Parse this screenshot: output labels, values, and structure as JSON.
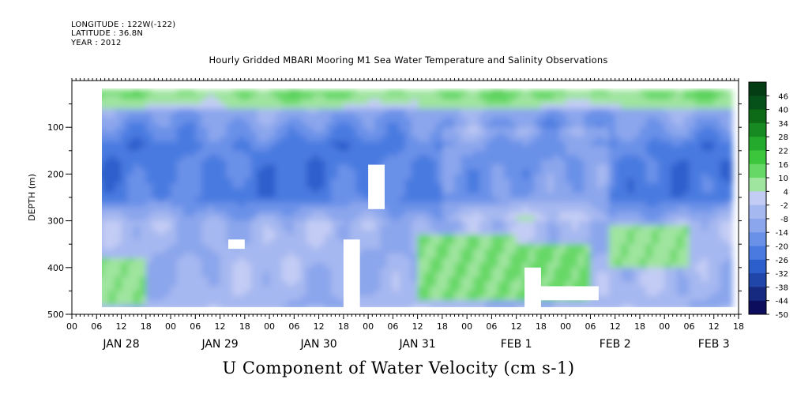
{
  "header": {
    "longitude": "LONGITUDE : 122W(-122)",
    "latitude": "LATITUDE : 36.8N",
    "year": "YEAR : 2012",
    "title": "Hourly Gridded MBARI Mooring M1 Sea Water Temperature and Salinity Observations"
  },
  "chart_data": {
    "type": "heatmap",
    "title": "Hourly Gridded MBARI Mooring M1 Sea Water Temperature and Salinity Observations",
    "xlabel": "U Component of Water Velocity (cm s-1)",
    "ylabel": "DEPTH (m)",
    "x_unit": "hours",
    "x_range_hours": [
      0,
      162
    ],
    "x_hour_ticks": [
      "00",
      "06",
      "12",
      "18",
      "00",
      "06",
      "12",
      "18",
      "00",
      "06",
      "12",
      "18",
      "00",
      "06",
      "12",
      "18",
      "00",
      "06",
      "12",
      "18",
      "00",
      "06",
      "12",
      "18",
      "00",
      "06",
      "12",
      "18"
    ],
    "x_day_labels": [
      "JAN 28",
      "JAN 29",
      "JAN 30",
      "JAN 31",
      "FEB  1",
      "FEB  2",
      "FEB  3"
    ],
    "ylim": [
      0,
      500
    ],
    "y_ticks": [
      100,
      200,
      300,
      400,
      500
    ],
    "y_reversed": true,
    "data_depth_range": [
      20,
      490
    ],
    "data_time_range_hours": [
      6,
      160
    ],
    "colorbar": {
      "min": -50,
      "max": 49,
      "labels": [
        46,
        40,
        34,
        28,
        22,
        16,
        10,
        4,
        -2,
        -8,
        -14,
        -20,
        -26,
        -32,
        -38,
        -44,
        -50
      ],
      "colors": [
        "#0d0d5e",
        "#162a80",
        "#1f46a8",
        "#2d5fcc",
        "#4a7ae0",
        "#6a91e8",
        "#8ba6ec",
        "#a6b8f0",
        "#c3ccf4",
        "#9fe49f",
        "#66d866",
        "#3cc63c",
        "#24aa2d",
        "#178a22",
        "#0d6b18",
        "#06501a",
        "#043d14"
      ],
      "range_blocks": [
        {
          "lo": -50,
          "hi": -44,
          "color": "#0d0d5e"
        },
        {
          "lo": -44,
          "hi": -38,
          "color": "#162a80"
        },
        {
          "lo": -38,
          "hi": -32,
          "color": "#1f46a8"
        },
        {
          "lo": -32,
          "hi": -26,
          "color": "#2d5fcc"
        },
        {
          "lo": -26,
          "hi": -20,
          "color": "#4a7ae0"
        },
        {
          "lo": -20,
          "hi": -14,
          "color": "#6a91e8"
        },
        {
          "lo": -14,
          "hi": -8,
          "color": "#8ba6ec"
        },
        {
          "lo": -8,
          "hi": -2,
          "color": "#a6b8f0"
        },
        {
          "lo": -2,
          "hi": 4,
          "color": "#c3ccf4"
        },
        {
          "lo": 4,
          "hi": 10,
          "color": "#9fe49f"
        },
        {
          "lo": 10,
          "hi": 16,
          "color": "#66d866"
        },
        {
          "lo": 16,
          "hi": 22,
          "color": "#3cc63c"
        },
        {
          "lo": 22,
          "hi": 28,
          "color": "#24aa2d"
        },
        {
          "lo": 28,
          "hi": 34,
          "color": "#178a22"
        },
        {
          "lo": 34,
          "hi": 40,
          "color": "#0d6b18"
        },
        {
          "lo": 40,
          "hi": 46,
          "color": "#06501a"
        },
        {
          "lo": 46,
          "hi": 52,
          "color": "#043d14"
        }
      ]
    },
    "field": {
      "surface_layer": {
        "depth": [
          20,
          60
        ],
        "value_cm_s": 12
      },
      "mid_core": {
        "depth": [
          130,
          260
        ],
        "value_cm_s": -22
      },
      "deep_layer": {
        "depth": [
          300,
          490
        ],
        "value_cm_s": -6
      },
      "positive_patches": [
        {
          "hours": [
            6,
            18
          ],
          "depth": [
            380,
            480
          ],
          "value_cm_s": 8
        },
        {
          "hours": [
            84,
            108
          ],
          "depth": [
            330,
            470
          ],
          "value_cm_s": 10
        },
        {
          "hours": [
            108,
            126
          ],
          "depth": [
            350,
            470
          ],
          "value_cm_s": 12
        },
        {
          "hours": [
            130,
            150
          ],
          "depth": [
            310,
            400
          ],
          "value_cm_s": 8
        }
      ],
      "missing_blocks": [
        {
          "hours": [
            38,
            42
          ],
          "depth": [
            340,
            360
          ]
        },
        {
          "hours": [
            66,
            70
          ],
          "depth": [
            340,
            490
          ]
        },
        {
          "hours": [
            72,
            76
          ],
          "depth": [
            180,
            275
          ]
        },
        {
          "hours": [
            110,
            114
          ],
          "depth": [
            400,
            490
          ]
        },
        {
          "hours": [
            114,
            128
          ],
          "depth": [
            440,
            470
          ]
        }
      ]
    }
  }
}
